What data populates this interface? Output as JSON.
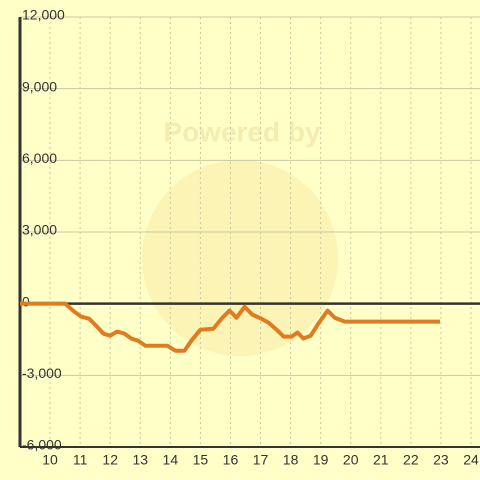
{
  "chart_data": {
    "type": "line",
    "watermark": "Powered by",
    "x": [
      9.0,
      10.5,
      10.8,
      11.03,
      11.3,
      11.53,
      11.77,
      12.0,
      12.23,
      12.47,
      12.7,
      12.93,
      13.17,
      13.9,
      14.17,
      14.47,
      14.7,
      15.0,
      15.43,
      15.73,
      15.97,
      16.2,
      16.47,
      16.73,
      17.03,
      17.27,
      17.57,
      17.77,
      18.03,
      18.23,
      18.43,
      18.67,
      18.9,
      19.23,
      19.47,
      19.8,
      22.97
    ],
    "series": [
      {
        "color": "#e07b20",
        "values": [
          0,
          0,
          -330,
          -540,
          -630,
          -920,
          -1250,
          -1340,
          -1170,
          -1250,
          -1460,
          -1550,
          -1760,
          -1760,
          -1970,
          -1970,
          -1550,
          -1090,
          -1050,
          -590,
          -290,
          -590,
          -130,
          -460,
          -630,
          -800,
          -1130,
          -1380,
          -1380,
          -1210,
          -1460,
          -1340,
          -880,
          -290,
          -590,
          -750,
          -750
        ]
      }
    ],
    "xlim": [
      9.0,
      24.3
    ],
    "xticks": [
      10,
      11,
      12,
      13,
      14,
      15,
      16,
      17,
      18,
      19,
      20,
      21,
      22,
      23,
      24
    ],
    "ylim": [
      -6000,
      12000
    ],
    "yticks": [
      {
        "value": -6000,
        "label": "-6,000"
      },
      {
        "value": -3000,
        "label": "-3,000"
      },
      0,
      {
        "value": 3000,
        "label": "3,000"
      },
      {
        "value": 6000,
        "label": "6,000"
      },
      {
        "value": 9000,
        "label": "9,000"
      },
      {
        "value": 12000,
        "label": "12,000"
      }
    ],
    "grid": true
  }
}
